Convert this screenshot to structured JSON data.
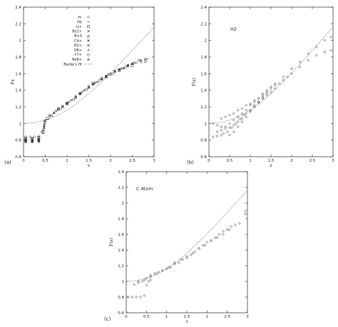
{
  "chart_data": [
    {
      "type": "scatter",
      "panel_label": "(a)",
      "ylabel": "Fx",
      "xlabel": "s",
      "xlim": [
        0,
        3
      ],
      "ylim": [
        0.6,
        2.4
      ],
      "xticks": [
        "0",
        "0.5",
        "1",
        "1.5",
        "2",
        "2.5",
        "3"
      ],
      "yticks": [
        "0.6",
        "0.8",
        "1",
        "1.2",
        "1.4",
        "1.6",
        "1.8",
        "2",
        "2.2",
        "2.4"
      ],
      "legend_position": "top-left",
      "series": [
        {
          "name": "H-",
          "marker": "diamond",
          "x": [
            0.05,
            0.15,
            0.25,
            0.35,
            0.42,
            0.5,
            0.6,
            0.8,
            1.0,
            1.2,
            1.5,
            1.8,
            2.1,
            2.4,
            2.7
          ],
          "y": [
            0.84,
            0.84,
            0.84,
            0.85,
            0.9,
            1.04,
            1.1,
            1.18,
            1.25,
            1.33,
            1.45,
            1.55,
            1.63,
            1.7,
            1.74
          ]
        },
        {
          "name": "He",
          "marker": "dash",
          "x": [
            0.05,
            0.2,
            0.35,
            0.45,
            0.55,
            0.7,
            0.9,
            1.1,
            1.4,
            1.7,
            2.0,
            2.3,
            2.6,
            2.85
          ],
          "y": [
            0.83,
            0.83,
            0.84,
            0.88,
            1.05,
            1.12,
            1.2,
            1.28,
            1.4,
            1.5,
            1.58,
            1.66,
            1.73,
            1.78
          ]
        },
        {
          "name": "Li+",
          "marker": "square",
          "x": [
            0.05,
            0.2,
            0.35,
            0.45,
            0.55,
            0.8,
            1.0,
            1.3,
            1.6,
            1.9,
            2.2,
            2.5,
            2.8
          ],
          "y": [
            0.82,
            0.82,
            0.83,
            0.9,
            1.06,
            1.17,
            1.24,
            1.36,
            1.48,
            1.56,
            1.64,
            1.7,
            1.75
          ]
        },
        {
          "name": "Be2+",
          "marker": "x",
          "x": [
            0.05,
            0.2,
            0.35,
            0.46,
            0.6,
            0.9,
            1.2,
            1.5,
            1.8,
            2.1,
            2.4,
            2.7
          ],
          "y": [
            0.81,
            0.81,
            0.82,
            0.92,
            1.09,
            1.21,
            1.32,
            1.44,
            1.54,
            1.63,
            1.7,
            1.76
          ]
        },
        {
          "name": "B+3",
          "marker": "triangle",
          "x": [
            0.05,
            0.2,
            0.35,
            0.47,
            0.65,
            1.0,
            1.3,
            1.6,
            1.9,
            2.2,
            2.5,
            2.8
          ],
          "y": [
            0.8,
            0.8,
            0.81,
            0.95,
            1.1,
            1.24,
            1.36,
            1.48,
            1.57,
            1.65,
            1.72,
            1.78
          ]
        },
        {
          "name": "C4+",
          "marker": "star",
          "x": [
            0.05,
            0.2,
            0.35,
            0.47,
            0.7,
            1.0,
            1.3,
            1.6,
            1.9,
            2.2,
            2.5
          ],
          "y": [
            0.8,
            0.8,
            0.8,
            0.96,
            1.13,
            1.24,
            1.36,
            1.47,
            1.57,
            1.65,
            1.72
          ]
        },
        {
          "name": "N5+",
          "marker": "x",
          "x": [
            0.05,
            0.2,
            0.35,
            0.48,
            0.75,
            1.05,
            1.35,
            1.65,
            1.95,
            2.25,
            2.55
          ],
          "y": [
            0.79,
            0.79,
            0.8,
            0.98,
            1.15,
            1.26,
            1.38,
            1.49,
            1.59,
            1.66,
            1.73
          ]
        },
        {
          "name": "O6+",
          "marker": "plus",
          "x": [
            0.05,
            0.2,
            0.35,
            0.48,
            0.8,
            1.1,
            1.4,
            1.7,
            2.0,
            2.3
          ],
          "y": [
            0.79,
            0.79,
            0.79,
            1.0,
            1.17,
            1.28,
            1.4,
            1.5,
            1.6,
            1.67
          ]
        },
        {
          "name": "F7+",
          "marker": "circle",
          "x": [
            0.05,
            0.2,
            0.35,
            0.49,
            0.85,
            1.15,
            1.45,
            1.75,
            2.05,
            2.35,
            2.65
          ],
          "y": [
            0.78,
            0.78,
            0.79,
            1.02,
            1.18,
            1.29,
            1.41,
            1.52,
            1.6,
            1.68,
            1.76
          ]
        },
        {
          "name": "Ne8+",
          "marker": "x",
          "x": [
            0.05,
            0.2,
            0.35,
            0.49,
            0.9,
            1.2,
            1.5,
            1.8,
            2.1,
            2.4
          ],
          "y": [
            0.78,
            0.78,
            0.78,
            1.03,
            1.2,
            1.31,
            1.43,
            1.53,
            1.62,
            1.69
          ]
        },
        {
          "name": "Becke's fit",
          "style": "dotted-line",
          "x": [
            0,
            0.25,
            0.5,
            0.75,
            1.0,
            1.25,
            1.5,
            1.75,
            2.0,
            2.25,
            2.5,
            2.75,
            3.0
          ],
          "y": [
            1.0,
            1.01,
            1.04,
            1.09,
            1.16,
            1.25,
            1.36,
            1.48,
            1.61,
            1.74,
            1.88,
            2.02,
            2.16
          ]
        }
      ]
    },
    {
      "type": "scatter",
      "panel_label": "(b)",
      "inset_label": "H2",
      "ylabel": "F(s)",
      "xlabel": "s",
      "xlim": [
        0,
        3
      ],
      "ylim": [
        0.6,
        2.4
      ],
      "xticks": [
        "0",
        "0.5",
        "1",
        "1.5",
        "2",
        "2.5",
        "3"
      ],
      "yticks": [
        "0.6",
        "0.8",
        "1",
        "1.2",
        "1.4",
        "1.6",
        "1.8",
        "2",
        "2.2",
        "2.4"
      ],
      "series": [
        {
          "marker": "diamond",
          "x": [
            0.1,
            0.2,
            0.3,
            0.35,
            0.45,
            0.55,
            0.65,
            0.75,
            0.85,
            1.0,
            1.1,
            1.2,
            1.3,
            1.4,
            1.5,
            1.6,
            1.7,
            1.8,
            1.9,
            2.0,
            2.2,
            2.4,
            2.6,
            2.8,
            2.95
          ],
          "y": [
            0.84,
            0.85,
            0.86,
            0.88,
            0.9,
            0.95,
            1.0,
            1.05,
            1.1,
            1.16,
            1.2,
            1.25,
            1.3,
            1.34,
            1.38,
            1.42,
            1.48,
            1.52,
            1.56,
            1.6,
            1.68,
            1.76,
            1.82,
            1.86,
            1.88
          ]
        },
        {
          "marker": "diamond",
          "x": [
            0.1,
            0.2,
            0.3,
            0.4,
            0.5,
            0.6,
            0.7,
            0.8,
            0.9,
            1.0,
            1.1,
            1.2,
            1.3,
            1.4,
            1.5,
            1.6,
            1.8,
            2.0,
            2.2,
            2.4,
            2.6,
            2.8,
            2.95
          ],
          "y": [
            1.0,
            0.98,
            0.96,
            0.94,
            0.95,
            0.98,
            1.02,
            1.06,
            1.12,
            1.16,
            1.22,
            1.26,
            1.32,
            1.36,
            1.42,
            1.46,
            1.56,
            1.66,
            1.74,
            1.84,
            1.92,
            2.0,
            2.04
          ]
        },
        {
          "marker": "diamond",
          "x": [
            0.2,
            0.3,
            0.4,
            0.5,
            0.6,
            0.7,
            0.8,
            0.9,
            1.0,
            1.1,
            1.2,
            1.3,
            1.4,
            1.5,
            1.6
          ],
          "y": [
            0.9,
            0.92,
            0.96,
            1.0,
            1.04,
            1.08,
            1.12,
            1.16,
            1.22,
            1.26,
            1.3,
            1.36,
            1.4,
            1.44,
            1.48
          ]
        },
        {
          "marker": "diamond",
          "x": [
            0.3,
            0.4,
            0.5,
            0.6,
            0.7,
            0.8,
            0.9,
            1.0,
            1.1,
            1.2,
            1.3,
            1.4
          ],
          "y": [
            1.06,
            1.08,
            1.1,
            1.12,
            1.16,
            1.18,
            1.22,
            1.24,
            1.28,
            1.3,
            1.34,
            1.38
          ]
        },
        {
          "marker": "diamond",
          "x": [
            0.5,
            0.6,
            0.7,
            0.8,
            0.9,
            1.0,
            1.1,
            1.2,
            1.3
          ],
          "y": [
            0.86,
            0.9,
            0.96,
            1.02,
            1.08,
            1.14,
            1.2,
            1.26,
            1.3
          ]
        },
        {
          "name": "Becke's fit",
          "style": "dotted-line",
          "x": [
            0,
            0.25,
            0.5,
            0.75,
            1.0,
            1.25,
            1.5,
            1.75,
            2.0,
            2.25,
            2.5,
            2.75,
            3.0
          ],
          "y": [
            1.0,
            1.01,
            1.04,
            1.09,
            1.16,
            1.25,
            1.36,
            1.48,
            1.61,
            1.74,
            1.88,
            2.02,
            2.16
          ]
        }
      ]
    },
    {
      "type": "scatter",
      "panel_label": "(c)",
      "inset_label": "C Atom",
      "ylabel": "F(s)",
      "xlabel": "s",
      "xlim": [
        0,
        3
      ],
      "ylim": [
        0.6,
        2.4
      ],
      "xticks": [
        "0",
        "0.5",
        "1",
        "1.5",
        "2",
        "2.5",
        "3"
      ],
      "yticks": [
        "0.6",
        "0.8",
        "1",
        "1.2",
        "1.4",
        "1.6",
        "1.8",
        "2",
        "2.2",
        "2.4"
      ],
      "series": [
        {
          "marker": "diamond",
          "x": [
            0.05,
            0.15,
            0.25,
            0.35,
            0.45,
            0.5,
            0.55,
            0.6
          ],
          "y": [
            0.8,
            0.8,
            0.8,
            0.8,
            0.82,
            0.95,
            1.0,
            1.02
          ]
        },
        {
          "marker": "diamond",
          "x": [
            0.2,
            0.3,
            0.4,
            0.5,
            0.6,
            0.7,
            0.8,
            0.9,
            1.0,
            1.1,
            1.2,
            1.3,
            1.4,
            1.5,
            1.6,
            1.7,
            1.8,
            1.9,
            2.0,
            2.1,
            2.2,
            2.3,
            2.4,
            2.5,
            2.6,
            2.8,
            2.95
          ],
          "y": [
            0.96,
            0.98,
            1.0,
            1.04,
            1.08,
            1.1,
            1.12,
            1.14,
            1.16,
            1.18,
            1.22,
            1.24,
            1.28,
            1.3,
            1.34,
            1.38,
            1.42,
            1.46,
            1.5,
            1.52,
            1.56,
            1.6,
            1.64,
            1.66,
            1.7,
            1.74,
            1.86
          ]
        },
        {
          "marker": "diamond",
          "x": [
            0.3,
            0.45,
            0.6,
            0.75,
            0.9,
            1.05,
            1.2,
            1.35,
            1.5,
            1.65,
            1.8,
            1.95,
            2.1,
            2.25,
            2.4,
            2.55,
            2.7,
            2.95
          ],
          "y": [
            1.0,
            1.02,
            1.06,
            1.1,
            1.14,
            1.18,
            1.24,
            1.28,
            1.32,
            1.36,
            1.42,
            1.46,
            1.52,
            1.56,
            1.6,
            1.66,
            1.72,
            1.9
          ]
        },
        {
          "name": "Becke's fit",
          "style": "dotted-line",
          "x": [
            0,
            0.25,
            0.5,
            0.75,
            1.0,
            1.25,
            1.5,
            1.75,
            2.0,
            2.25,
            2.5,
            2.75,
            3.0
          ],
          "y": [
            1.0,
            1.01,
            1.04,
            1.09,
            1.16,
            1.25,
            1.36,
            1.48,
            1.61,
            1.74,
            1.88,
            2.02,
            2.16
          ]
        }
      ]
    }
  ]
}
